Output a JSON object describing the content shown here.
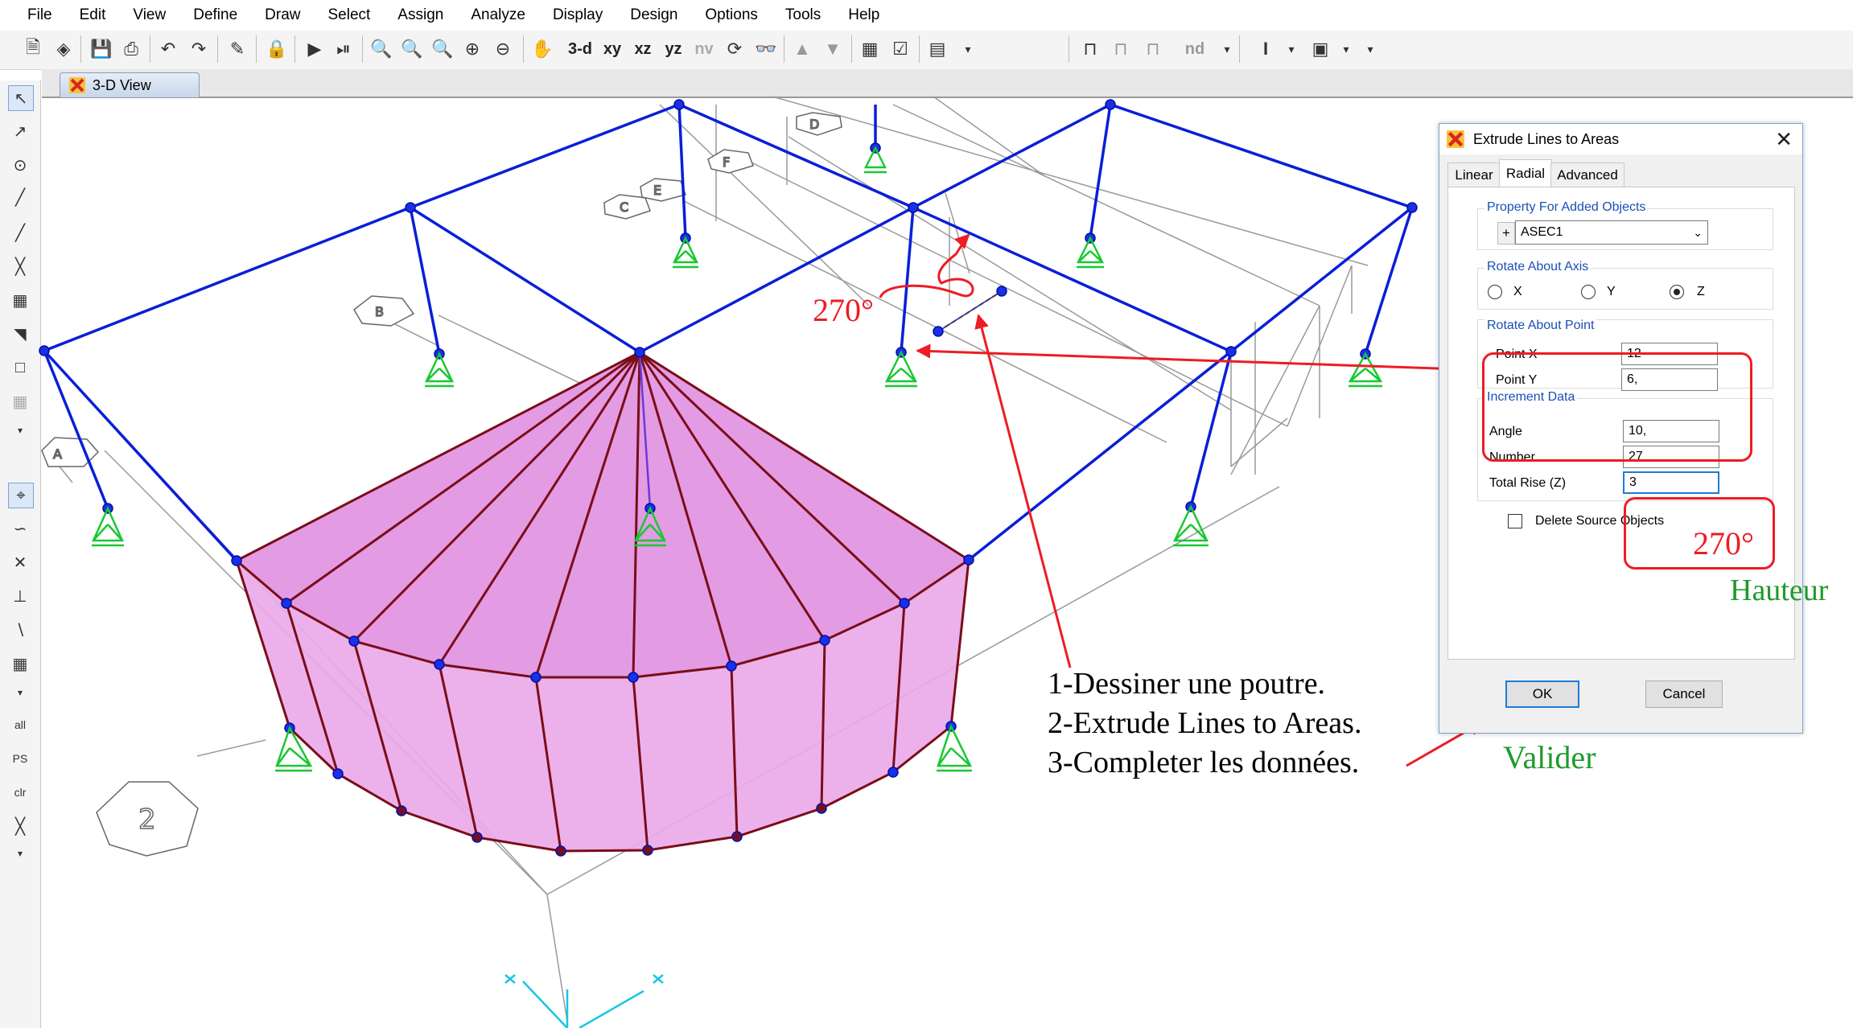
{
  "menu": [
    "File",
    "Edit",
    "View",
    "Define",
    "Draw",
    "Select",
    "Assign",
    "Analyze",
    "Display",
    "Design",
    "Options",
    "Tools",
    "Help"
  ],
  "toolbar": {
    "view_3d": "3-d",
    "view_xy": "xy",
    "view_xz": "xz",
    "view_yz": "yz",
    "view_nv": "nv",
    "view_nd": "nd"
  },
  "view_tab": {
    "label": "3-D View"
  },
  "left_toolbar": {
    "label_all": "all",
    "label_ps": "PS",
    "label_clr": "clr"
  },
  "dialog": {
    "title": "Extrude Lines to Areas",
    "tabs": [
      "Linear",
      "Radial",
      "Advanced"
    ],
    "active_tab": "Radial",
    "property": {
      "group_label": "Property For Added Objects",
      "plus_label": "+",
      "value": "ASEC1"
    },
    "rotate_axis": {
      "group_label": "Rotate About Axis",
      "options": [
        "X",
        "Y",
        "Z"
      ],
      "selected": "Z"
    },
    "rotate_point": {
      "group_label": "Rotate About Point",
      "point_x_label": "Point X",
      "point_x_value": "12",
      "point_y_label": "Point Y",
      "point_y_value": "6,"
    },
    "increment": {
      "group_label": "Increment Data",
      "angle_label": "Angle",
      "angle_value": "10,",
      "number_label": "Number",
      "number_value": "27",
      "rise_label": "Total Rise (Z)",
      "rise_value": "3"
    },
    "delete_source_label": "Delete Source Objects",
    "ok_label": "OK",
    "cancel_label": "Cancel"
  },
  "annotations": {
    "angle_canvas": "270°",
    "angle_dialog": "270°",
    "hauteur": "Hauteur",
    "valider": "Valider",
    "steps": [
      "1-Dessiner une poutre.",
      "2-Extrude Lines to Areas.",
      "3-Completer les données."
    ]
  },
  "grid_bubbles": [
    "D",
    "F",
    "E",
    "C",
    "B",
    "A",
    "2"
  ],
  "colors": {
    "frame": "#0a1fd6",
    "support": "#19c832",
    "shell_fill": "#eaa8e8",
    "shell_edge": "#7a0d18",
    "grid": "#9a9a9a",
    "annot_red": "#ee1c24",
    "annot_green": "#1f9a2b",
    "axis_cyan": "#17c7e0"
  }
}
